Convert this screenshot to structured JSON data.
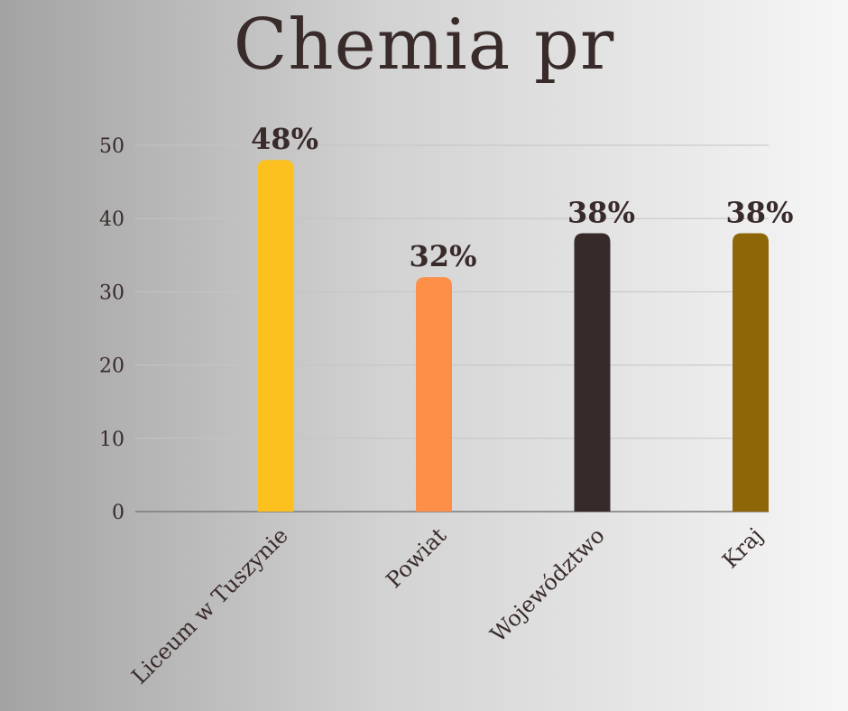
{
  "chart_data": {
    "type": "bar",
    "title": "Chemia pr",
    "categories": [
      "Liceum w Tuszynie",
      "Powiat",
      "Województwo",
      "Kraj"
    ],
    "values": [
      48,
      32,
      38,
      38
    ],
    "data_labels": [
      "48%",
      "32%",
      "38%",
      "38%"
    ],
    "colors": [
      "#fcc11f",
      "#fe8f48",
      "#372b2a",
      "#8e6608"
    ],
    "ylim": [
      0,
      50
    ],
    "yticks": [
      0,
      10,
      20,
      30,
      40,
      50
    ],
    "grid": true,
    "xlabel": "",
    "ylabel": ""
  }
}
